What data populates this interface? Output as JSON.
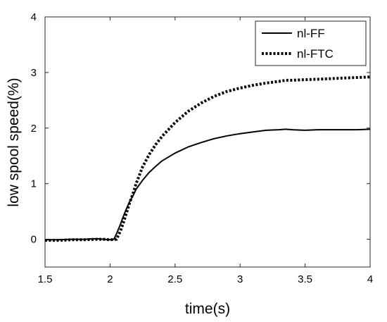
{
  "chart_data": {
    "type": "line",
    "title": "",
    "xlabel": "time(s)",
    "ylabel": "low spool speed(%)",
    "xlim": [
      1.5,
      4
    ],
    "ylim": [
      -0.5,
      4
    ],
    "xticks": [
      1.5,
      2,
      2.5,
      3,
      3.5,
      4
    ],
    "xtick_labels": [
      "1.5",
      "2",
      "2.5",
      "3",
      "3.5",
      "4"
    ],
    "yticks": [
      0,
      1,
      2,
      3,
      4
    ],
    "ytick_labels": [
      "0",
      "1",
      "2",
      "3",
      "4"
    ],
    "grid": false,
    "legend_position": "top-right",
    "series": [
      {
        "name": "nl-FF",
        "style": "solid",
        "color": "#000000",
        "x": [
          1.5,
          1.6,
          1.7,
          1.8,
          1.9,
          1.95,
          2.0,
          2.03,
          2.05,
          2.08,
          2.1,
          2.13,
          2.15,
          2.18,
          2.2,
          2.25,
          2.3,
          2.35,
          2.4,
          2.5,
          2.6,
          2.7,
          2.8,
          2.9,
          3.0,
          3.1,
          3.2,
          3.3,
          3.35,
          3.4,
          3.5,
          3.6,
          3.7,
          3.8,
          3.9,
          4.0
        ],
        "y": [
          -0.01,
          -0.01,
          0.0,
          0.0,
          0.01,
          0.0,
          -0.01,
          0.0,
          0.1,
          0.27,
          0.4,
          0.57,
          0.67,
          0.8,
          0.9,
          1.06,
          1.2,
          1.31,
          1.41,
          1.55,
          1.66,
          1.74,
          1.81,
          1.86,
          1.9,
          1.93,
          1.96,
          1.97,
          1.98,
          1.97,
          1.96,
          1.97,
          1.97,
          1.97,
          1.97,
          1.98
        ]
      },
      {
        "name": "nl-FTC",
        "style": "dotted",
        "color": "#000000",
        "x": [
          1.5,
          1.6,
          1.7,
          1.8,
          1.9,
          1.95,
          2.0,
          2.05,
          2.08,
          2.1,
          2.13,
          2.15,
          2.18,
          2.2,
          2.25,
          2.3,
          2.35,
          2.4,
          2.5,
          2.6,
          2.7,
          2.8,
          2.9,
          3.0,
          3.1,
          3.2,
          3.3,
          3.35,
          3.4,
          3.5,
          3.6,
          3.7,
          3.8,
          3.9,
          4.0
        ],
        "y": [
          -0.02,
          -0.02,
          -0.01,
          -0.01,
          0.0,
          0.0,
          -0.01,
          0.0,
          0.15,
          0.28,
          0.5,
          0.65,
          0.85,
          1.0,
          1.3,
          1.52,
          1.7,
          1.85,
          2.1,
          2.3,
          2.45,
          2.57,
          2.66,
          2.72,
          2.77,
          2.81,
          2.84,
          2.86,
          2.86,
          2.87,
          2.88,
          2.89,
          2.9,
          2.91,
          2.92
        ]
      }
    ]
  }
}
